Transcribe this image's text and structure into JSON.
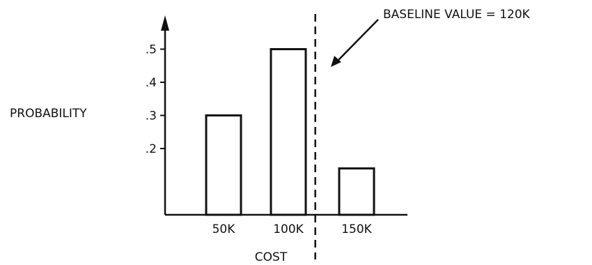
{
  "chart_data": {
    "type": "bar",
    "categories": [
      "50K",
      "100K",
      "150K"
    ],
    "values": [
      0.3,
      0.5,
      0.14
    ],
    "xlabel": "COST",
    "ylabel": "PROBABILITY",
    "yticks": [
      ".2",
      ".3",
      ".4",
      ".5"
    ],
    "ytick_values": [
      0.2,
      0.3,
      0.4,
      0.5
    ],
    "ylim": [
      0,
      0.6
    ],
    "grid": false,
    "annotation": {
      "text": "BASELINE VALUE = 120K",
      "x_value": 120
    }
  }
}
